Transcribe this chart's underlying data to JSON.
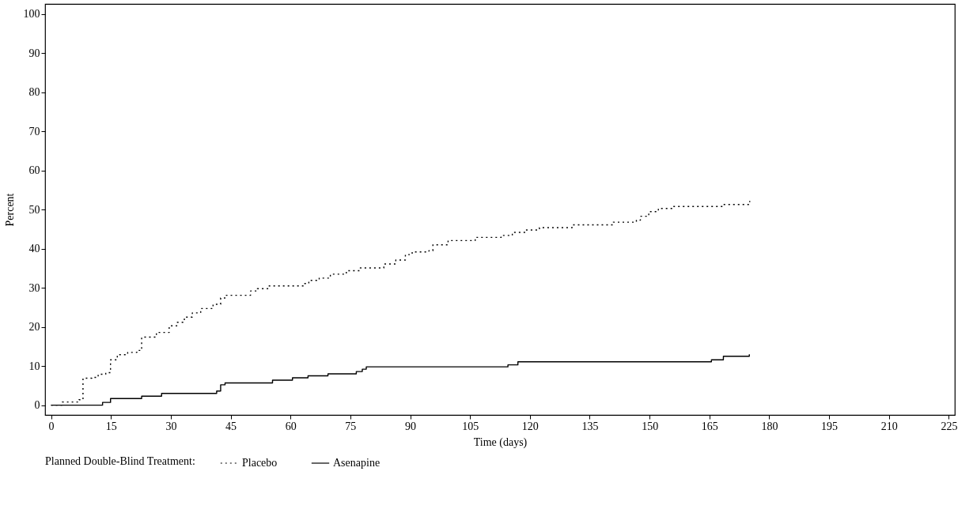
{
  "chart_data": {
    "type": "step",
    "xlabel": "Time (days)",
    "ylabel": "Percent",
    "legend_title": "Planned Double-Blind Treatment:",
    "legend": "bottom",
    "grid": false,
    "xlim": [
      -1.5,
      226.5
    ],
    "xticks": [
      0,
      15,
      30,
      45,
      60,
      75,
      90,
      105,
      120,
      135,
      150,
      165,
      180,
      195,
      210,
      225
    ],
    "ylim": [
      -2.5,
      102.6
    ],
    "yticks": [
      0,
      10,
      20,
      30,
      40,
      50,
      60,
      70,
      80,
      90,
      100
    ],
    "series": [
      {
        "name": "Placebo",
        "color": "#000000",
        "line_style": "dotted",
        "x": [
          0,
          2.8,
          7,
          8,
          10.2,
          11.8,
          13.7,
          14.9,
          16.6,
          19.2,
          21.5,
          22.7,
          26.4,
          29.6,
          31.5,
          33.4,
          35.4,
          37.5,
          40.6,
          42.5,
          43.6,
          50,
          51.7,
          54.3,
          63.3,
          64.6,
          67.2,
          70,
          74,
          77.5,
          83.4,
          86.4,
          88.8,
          90.5,
          94.7,
          95.7,
          99.5,
          106.3,
          112.8,
          115.6,
          119,
          122.4,
          130.6,
          140.9,
          146.7,
          147.7,
          149.8,
          152.2,
          155.6,
          168.3,
          175.1
        ],
        "values": [
          0,
          0.8,
          1.4,
          6.9,
          7.1,
          7.9,
          8.3,
          11.6,
          12.9,
          13.5,
          14,
          17.4,
          18.6,
          20.3,
          21.2,
          22.5,
          23.6,
          24.7,
          25.8,
          27.4,
          28.1,
          29.2,
          29.8,
          30.5,
          31.1,
          31.9,
          32.5,
          33.5,
          34.4,
          35.1,
          36.1,
          37.1,
          38.5,
          39.2,
          39.5,
          41,
          42.1,
          42.9,
          43.4,
          44.2,
          44.8,
          45.4,
          46.1,
          46.8,
          47.3,
          48.3,
          49.5,
          50.3,
          50.8,
          51.3,
          52.2
        ]
      },
      {
        "name": "Asenapine",
        "color": "#000000",
        "line_style": "solid",
        "x": [
          0,
          12.9,
          14.9,
          22.7,
          27.7,
          41.5,
          42.5,
          43.6,
          55.5,
          60.5,
          64.4,
          69.4,
          76.5,
          78,
          79,
          114.5,
          117,
          165.5,
          168.5,
          175
        ],
        "values": [
          0,
          0.7,
          1.7,
          2.3,
          3,
          3.6,
          5.2,
          5.7,
          6.4,
          7,
          7.5,
          8,
          8.6,
          9.2,
          9.8,
          10.3,
          11.1,
          11.6,
          12.5,
          13
        ]
      }
    ]
  }
}
